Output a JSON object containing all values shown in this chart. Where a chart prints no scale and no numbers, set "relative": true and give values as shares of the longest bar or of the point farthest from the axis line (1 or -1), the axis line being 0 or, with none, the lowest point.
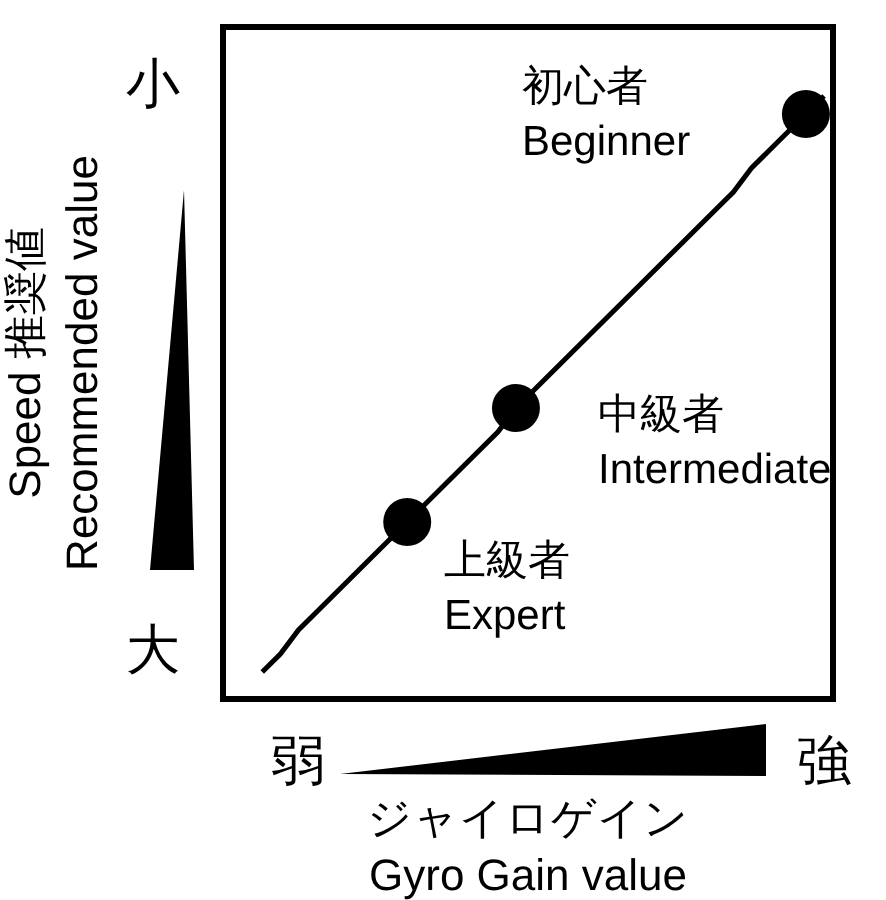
{
  "chart_data": {
    "type": "scatter",
    "relative": true,
    "xlabel": "ジャイロゲイン\nGyro Gain value",
    "ylabel": "Speed 推奨値\nRecommended value",
    "categories": [
      null,
      null,
      "弱",
      null,
      null,
      null,
      null,
      null,
      null,
      null,
      null,
      null,
      null,
      null,
      null,
      null,
      null,
      null,
      null,
      null,
      null,
      null,
      null,
      null,
      null,
      null,
      null,
      null,
      null,
      null,
      null,
      "強"
    ],
    "series": [
      {
        "type": "line",
        "color": "#000000",
        "marker": "none",
        "values": [
          0.04,
          0.07,
          0.11,
          0.14,
          0.17,
          0.2,
          0.23,
          0.26,
          0.29,
          0.32,
          0.35,
          0.38,
          0.41,
          0.44,
          0.48,
          0.51,
          0.54,
          0.57,
          0.6,
          0.63,
          0.66,
          0.69,
          0.72,
          0.75,
          0.78,
          0.81,
          0.84,
          0.88,
          0.91,
          0.94,
          0.97,
          1.0
        ]
      },
      {
        "type": "scatter",
        "color": "#000000",
        "marker": "circle",
        "values": [
          null,
          null,
          null,
          null,
          null,
          null,
          null,
          null,
          0.29,
          null,
          null,
          null,
          null,
          null,
          0.48,
          null,
          null,
          null,
          null,
          null,
          null,
          null,
          null,
          null,
          null,
          null,
          null,
          null,
          null,
          null,
          0.97,
          null
        ]
      }
    ],
    "annotations": [
      "上級者\nExpert",
      "中級者\nIntermediate",
      "初心者\nBeginner",
      "大",
      "小"
    ]
  }
}
